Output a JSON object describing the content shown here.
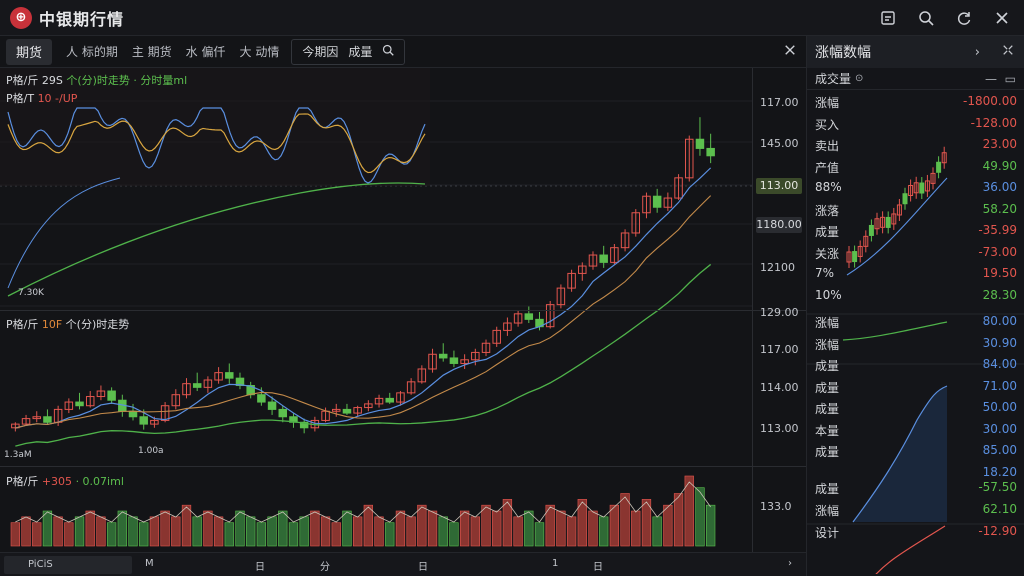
{
  "app": {
    "title": "中银期行情",
    "logo_glyph": "⊕"
  },
  "window_icons": [
    "note-icon",
    "search-icon",
    "refresh-icon",
    "close-icon"
  ],
  "toolbar": {
    "tab_active": "期货",
    "tabs": [
      "人 标的期",
      "主 期货",
      "水 偏仟",
      "大 动情"
    ],
    "group_label_1": "今期因",
    "group_label_2": "成量"
  },
  "panes": {
    "top": {
      "label_main": "P格/斤 29S",
      "label_green": "个(分)时走势 · 分时量ml",
      "label_2": "P格/T",
      "label_2_red": "10 -/UP",
      "corner": "7.30K"
    },
    "mid": {
      "label_main": "P格/斤",
      "label_orange": "10F",
      "label_white": "个(分)时走势",
      "corner": "1.3aM",
      "mini": "1.00a"
    },
    "vol": {
      "label_main": "P格/斤",
      "label_red": "+305",
      "label_green": "· 0.07iml"
    }
  },
  "yaxis": {
    "top": [
      "117.00",
      "145.00",
      "113.00",
      "1180.00",
      "12100",
      "129.00"
    ],
    "mid": [
      "117.00",
      "114.00",
      "113.00"
    ],
    "vol": [
      "133.0"
    ]
  },
  "bottombar": {
    "first": "PiCiS",
    "items": [
      "M",
      "日",
      "分",
      "日",
      "1",
      "日"
    ]
  },
  "rpanel": {
    "header": "涨幅数幅",
    "sub_label": "成交量",
    "rows_top": [
      {
        "k": "涨幅",
        "v": "-1800.00",
        "c": "red"
      },
      {
        "k": "买入",
        "v": "-128.00",
        "c": "red"
      },
      {
        "k": "卖出",
        "v": "23.00",
        "c": "red"
      },
      {
        "k": "产值",
        "v": "49.90",
        "c": "green"
      },
      {
        "k": "88%",
        "v": "36.00",
        "c": "blue"
      },
      {
        "k": "涨落",
        "v": "58.20",
        "c": "green"
      },
      {
        "k": "成量",
        "v": "-35.99",
        "c": "red"
      },
      {
        "k": "关涨",
        "v": "-73.00",
        "c": "red"
      },
      {
        "k": "7%",
        "v": "19.50",
        "c": "red"
      },
      {
        "k": "10%",
        "v": "28.30",
        "c": "green"
      }
    ],
    "rows_mid": [
      {
        "k": "涨幅",
        "v": "80.00",
        "c": "blue"
      },
      {
        "k": "涨幅",
        "v": "30.90",
        "c": "blue"
      },
      {
        "k": "成量",
        "v": "84.00",
        "c": "blue"
      },
      {
        "k": "成量",
        "v": "71.00",
        "c": "blue"
      },
      {
        "k": "成量",
        "v": "50.00",
        "c": "blue"
      },
      {
        "k": "本量",
        "v": "30.00",
        "c": "blue"
      },
      {
        "k": "成量",
        "v": "85.00",
        "c": "blue"
      },
      {
        "k": "",
        "v": "18.20",
        "c": "blue"
      }
    ],
    "rows_bot": [
      {
        "k": "成量",
        "v": "-57.50",
        "c": "green"
      },
      {
        "k": "涨幅",
        "v": "62.10",
        "c": "green"
      },
      {
        "k": "设计",
        "v": "-12.90",
        "c": "red"
      }
    ]
  },
  "colors": {
    "up": "#e3564e",
    "down": "#5cbf4e",
    "ma_blue": "#5a8fe0",
    "ma_orange": "#d9a640",
    "ma_green": "#4fb24a"
  },
  "chart_data": {
    "type": "candlestick",
    "candles": [
      [
        112.6,
        112.9,
        112.4,
        112.8
      ],
      [
        112.8,
        113.3,
        112.7,
        113.1
      ],
      [
        113.1,
        113.5,
        112.9,
        113.2
      ],
      [
        113.2,
        113.6,
        112.8,
        112.9
      ],
      [
        112.9,
        113.8,
        112.7,
        113.6
      ],
      [
        113.6,
        114.2,
        113.4,
        114.0
      ],
      [
        114.0,
        114.5,
        113.6,
        113.8
      ],
      [
        113.8,
        114.6,
        113.7,
        114.3
      ],
      [
        114.3,
        114.9,
        114.1,
        114.6
      ],
      [
        114.6,
        114.8,
        113.9,
        114.1
      ],
      [
        114.1,
        114.4,
        113.2,
        113.5
      ],
      [
        113.5,
        113.9,
        113.0,
        113.2
      ],
      [
        113.2,
        113.6,
        112.5,
        112.8
      ],
      [
        112.8,
        113.2,
        112.6,
        113.0
      ],
      [
        113.0,
        114.0,
        112.9,
        113.8
      ],
      [
        113.8,
        114.7,
        113.6,
        114.4
      ],
      [
        114.4,
        115.3,
        114.2,
        115.0
      ],
      [
        115.0,
        115.6,
        114.6,
        114.8
      ],
      [
        114.8,
        115.4,
        114.5,
        115.2
      ],
      [
        115.2,
        115.9,
        115.0,
        115.6
      ],
      [
        115.6,
        116.1,
        115.0,
        115.3
      ],
      [
        115.3,
        115.6,
        114.7,
        114.9
      ],
      [
        114.9,
        115.1,
        114.2,
        114.4
      ],
      [
        114.4,
        114.8,
        113.8,
        114.0
      ],
      [
        114.0,
        114.3,
        113.3,
        113.6
      ],
      [
        113.6,
        113.8,
        112.9,
        113.2
      ],
      [
        113.2,
        113.4,
        112.6,
        112.9
      ],
      [
        112.9,
        113.1,
        112.3,
        112.6
      ],
      [
        112.6,
        113.2,
        112.4,
        113.0
      ],
      [
        113.0,
        113.7,
        112.9,
        113.5
      ],
      [
        113.5,
        113.9,
        113.2,
        113.6
      ],
      [
        113.6,
        113.9,
        113.3,
        113.4
      ],
      [
        113.4,
        113.8,
        113.2,
        113.7
      ],
      [
        113.7,
        114.1,
        113.5,
        113.9
      ],
      [
        113.9,
        114.4,
        113.7,
        114.2
      ],
      [
        114.2,
        114.5,
        113.9,
        114.0
      ],
      [
        114.0,
        114.6,
        113.8,
        114.5
      ],
      [
        114.5,
        115.3,
        114.4,
        115.1
      ],
      [
        115.1,
        116.0,
        115.0,
        115.8
      ],
      [
        115.8,
        116.9,
        115.6,
        116.6
      ],
      [
        116.6,
        117.2,
        116.2,
        116.4
      ],
      [
        116.4,
        116.8,
        115.9,
        116.1
      ],
      [
        116.1,
        116.6,
        115.8,
        116.3
      ],
      [
        116.3,
        116.9,
        116.0,
        116.7
      ],
      [
        116.7,
        117.4,
        116.5,
        117.2
      ],
      [
        117.2,
        118.1,
        117.0,
        117.9
      ],
      [
        117.9,
        118.6,
        117.6,
        118.3
      ],
      [
        118.3,
        119.0,
        118.1,
        118.8
      ],
      [
        118.8,
        119.2,
        118.3,
        118.5
      ],
      [
        118.5,
        118.9,
        117.9,
        118.1
      ],
      [
        118.1,
        119.5,
        118.0,
        119.3
      ],
      [
        119.3,
        120.4,
        119.1,
        120.2
      ],
      [
        120.2,
        121.2,
        120.0,
        121.0
      ],
      [
        121.0,
        121.6,
        120.6,
        121.4
      ],
      [
        121.4,
        122.2,
        121.2,
        122.0
      ],
      [
        122.0,
        122.5,
        121.3,
        121.6
      ],
      [
        121.6,
        122.6,
        121.5,
        122.4
      ],
      [
        122.4,
        123.4,
        122.2,
        123.2
      ],
      [
        123.2,
        124.5,
        123.0,
        124.3
      ],
      [
        124.3,
        125.4,
        124.0,
        125.2
      ],
      [
        125.2,
        125.6,
        124.3,
        124.6
      ],
      [
        124.6,
        125.4,
        124.4,
        125.1
      ],
      [
        125.1,
        126.4,
        125.0,
        126.2
      ],
      [
        126.2,
        128.5,
        126.0,
        128.3
      ],
      [
        128.3,
        129.5,
        127.4,
        127.8
      ],
      [
        127.8,
        128.6,
        127.0,
        127.4
      ]
    ],
    "volume": [
      4,
      5,
      4,
      6,
      5,
      4,
      5,
      6,
      5,
      4,
      6,
      5,
      4,
      5,
      6,
      5,
      7,
      5,
      6,
      5,
      4,
      6,
      5,
      4,
      5,
      6,
      4,
      5,
      6,
      5,
      4,
      6,
      5,
      7,
      5,
      4,
      6,
      5,
      7,
      6,
      5,
      4,
      6,
      5,
      7,
      6,
      8,
      5,
      6,
      4,
      7,
      6,
      5,
      8,
      6,
      5,
      7,
      9,
      6,
      8,
      5,
      7,
      9,
      12,
      10,
      7
    ]
  }
}
